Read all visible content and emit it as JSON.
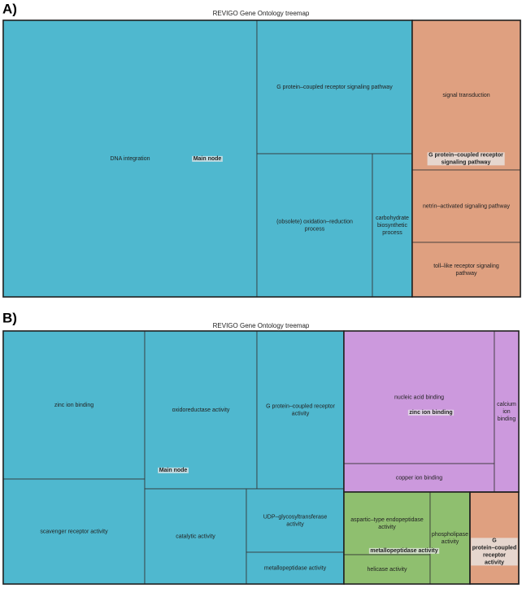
{
  "panels": [
    {
      "panel_label": "A)",
      "title": "REVIGO Gene Ontology treemap",
      "groups": [
        {
          "label": "Main node",
          "color": "#4fb8cf",
          "cells": [
            "DNA integration",
            "G protein–coupled receptor signaling pathway",
            "(obsolete) oxidation–reduction process",
            "carbohydrate biosynthetic process"
          ]
        },
        {
          "label": "G protein–coupled receptor signaling pathway",
          "color": "#dfa080",
          "cells": [
            "signal transduction",
            "netrin–activated signaling pathway",
            "toll–like receptor signaling pathway"
          ]
        }
      ]
    },
    {
      "panel_label": "B)",
      "title": "REVIGO Gene Ontology treemap",
      "groups": [
        {
          "label": "Main node",
          "color": "#4fb8cf",
          "cells": [
            "zinc ion binding",
            "scavenger receptor activity",
            "oxidoreductase activity",
            "G protein–coupled receptor activity",
            "catalytic activity",
            "UDP–glycosyltransferase activity",
            "metallopeptidase activity"
          ]
        },
        {
          "label": "zinc ion binding",
          "color": "#cc99dd",
          "cells": [
            "nucleic acid binding",
            "copper ion binding",
            "calcium ion binding"
          ]
        },
        {
          "label": "metallopeptidase activity",
          "color": "#8fbf6f",
          "cells": [
            "aspartic–type endopeptidase activity",
            "helicase activity",
            "phospholipase activity"
          ]
        },
        {
          "label": "G protein–coupled receptor activity",
          "color": "#dfa080",
          "cells": []
        }
      ]
    }
  ]
}
